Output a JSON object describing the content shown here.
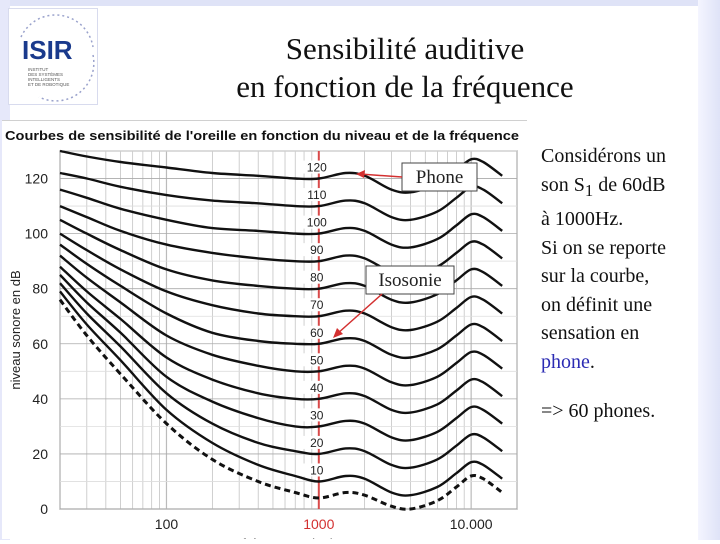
{
  "logo": {
    "wordmark": "ISIR",
    "lines": [
      "INSTITUT",
      "DES SYSTÈMES",
      "INTELLIGENTS",
      "ET DE ROBOTIQUE"
    ]
  },
  "slide": {
    "title_line1": "Sensibilité auditive",
    "title_line2": "en fonction de la fréquence"
  },
  "explanation": {
    "l1": "Considérons un",
    "l2a": "son S",
    "l2sub": "1",
    "l2b": " de 60dB",
    "l3": "à 1000Hz.",
    "l4": "Si on se reporte",
    "l5": "sur la courbe,",
    "l6": "on définit une",
    "l7": "sensation en",
    "l8": "phone",
    "l8end": ".",
    "result": "=> 60 phones."
  },
  "annotations": {
    "phone": "Phone",
    "isosonie": "Isosonie"
  },
  "colors": {
    "accent": "#2b2bb3",
    "callout": "#d33030",
    "highlight": "#d84a4a"
  },
  "chart_data": {
    "type": "line",
    "title": "Courbes de sensibilité de l'oreille en fonction du niveau et de la fréquence",
    "xlabel": "fréquences (Hz)",
    "ylabel": "niveau sonore en dB",
    "x_scale": "log",
    "xlim": [
      20,
      20000
    ],
    "ylim": [
      0,
      130
    ],
    "x_ticks": [
      {
        "value": 100,
        "label": "100"
      },
      {
        "value": 1000,
        "label": "1000"
      },
      {
        "value": 10000,
        "label": "10.000"
      }
    ],
    "y_ticks": [
      0,
      20,
      40,
      60,
      80,
      100,
      120
    ],
    "grid": true,
    "highlight_x": 1000,
    "x": [
      20,
      30,
      50,
      100,
      200,
      400,
      700,
      1000,
      1500,
      2000,
      3000,
      4000,
      6000,
      8000,
      10000,
      12000,
      16000
    ],
    "series": [
      {
        "name": "120",
        "values": [
          130,
          128,
          126,
          124,
          122,
          121,
          120,
          120,
          122,
          121,
          116,
          115,
          118,
          123,
          127,
          126,
          121
        ]
      },
      {
        "name": "110",
        "values": [
          122,
          120,
          117,
          114,
          112,
          111,
          110,
          110,
          112,
          111,
          106,
          105,
          108,
          113,
          117,
          116,
          111
        ]
      },
      {
        "name": "100",
        "values": [
          116,
          113,
          109,
          105,
          102,
          101,
          100,
          100,
          102,
          101,
          96,
          95,
          98,
          103,
          107,
          106,
          101
        ]
      },
      {
        "name": "90",
        "values": [
          110,
          106,
          101,
          96,
          93,
          91,
          90,
          90,
          92,
          91,
          86,
          85,
          88,
          93,
          97,
          96,
          91
        ]
      },
      {
        "name": "80",
        "values": [
          105,
          100,
          94,
          87,
          83,
          81,
          80,
          80,
          82,
          81,
          76,
          75,
          78,
          83,
          87,
          86,
          81
        ]
      },
      {
        "name": "70",
        "values": [
          100,
          94,
          87,
          79,
          74,
          71,
          70,
          70,
          72,
          71,
          66,
          65,
          68,
          73,
          77,
          76,
          71
        ]
      },
      {
        "name": "60",
        "values": [
          96,
          89,
          81,
          71,
          64,
          61,
          60,
          60,
          62,
          61,
          56,
          55,
          58,
          63,
          67,
          66,
          61
        ]
      },
      {
        "name": "50",
        "values": [
          92,
          84,
          75,
          63,
          56,
          52,
          50,
          50,
          52,
          51,
          46,
          45,
          48,
          53,
          57,
          56,
          51
        ]
      },
      {
        "name": "40",
        "values": [
          88,
          79,
          69,
          55,
          47,
          42,
          40,
          40,
          42,
          41,
          36,
          35,
          38,
          43,
          47,
          46,
          41
        ]
      },
      {
        "name": "30",
        "values": [
          85,
          75,
          64,
          48,
          39,
          33,
          30,
          30,
          32,
          31,
          26,
          25,
          28,
          33,
          37,
          36,
          31
        ]
      },
      {
        "name": "20",
        "values": [
          82,
          71,
          59,
          42,
          31,
          24,
          21,
          20,
          22,
          21,
          16,
          15,
          18,
          23,
          27,
          26,
          21
        ]
      },
      {
        "name": "10",
        "values": [
          79,
          67,
          54,
          36,
          24,
          16,
          12,
          10,
          12,
          11,
          6,
          5,
          8,
          13,
          17,
          16,
          11
        ]
      },
      {
        "name": "",
        "values": [
          76,
          63,
          49,
          31,
          18,
          10,
          6,
          4,
          6,
          5,
          1,
          0,
          3,
          8,
          12,
          11,
          6
        ]
      }
    ]
  }
}
